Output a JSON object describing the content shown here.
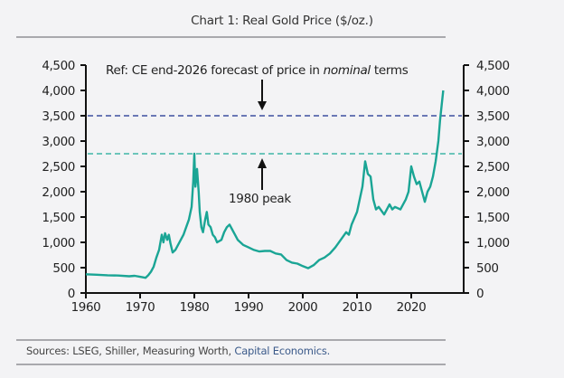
{
  "header": {
    "title": "Chart 1: Real Gold Price ($/oz.)"
  },
  "footer": {
    "sources_prefix": "Sources: LSEG, Shiller, Measuring Worth, ",
    "sources_link": "Capital Economics."
  },
  "colors": {
    "series": "#1aa595",
    "forecast_line": "#3c4fa0",
    "peak_line": "#3fb6a6",
    "axis": "#111111"
  },
  "chart_data": {
    "type": "line",
    "title": "Chart 1: Real Gold Price ($/oz.)",
    "xlabel": "",
    "ylabel": "",
    "xlim": [
      1960,
      2026
    ],
    "ylim": [
      0,
      4500
    ],
    "x_ticks": [
      1960,
      1970,
      1980,
      1990,
      2000,
      2010,
      2020
    ],
    "y_ticks": [
      0,
      500,
      1000,
      1500,
      2000,
      2500,
      3000,
      3500,
      4000,
      4500
    ],
    "y_tick_labels": [
      "0",
      "500",
      "1,000",
      "1,500",
      "2,000",
      "2,500",
      "3,000",
      "3,500",
      "4,000",
      "4,500"
    ],
    "dual_y_axis": true,
    "grid": false,
    "legend": "none",
    "series": [
      {
        "name": "Real gold price",
        "x": [
          1960,
          1962,
          1964,
          1966,
          1968,
          1969,
          1970,
          1971,
          1971.5,
          1972,
          1972.5,
          1973,
          1973.5,
          1974,
          1974.3,
          1974.6,
          1975,
          1975.3,
          1975.6,
          1976,
          1976.5,
          1977,
          1977.5,
          1978,
          1978.5,
          1979,
          1979.5,
          1979.8,
          1980,
          1980.2,
          1980.5,
          1980.8,
          1981,
          1981.3,
          1981.6,
          1982,
          1982.3,
          1982.6,
          1983,
          1983.4,
          1983.8,
          1984.2,
          1985,
          1985.5,
          1986,
          1986.5,
          1987,
          1987.5,
          1988,
          1989,
          1990,
          1991,
          1992,
          1993,
          1994,
          1995,
          1996,
          1997,
          1998,
          1999,
          2000,
          2001,
          2002,
          2003,
          2004,
          2005,
          2006,
          2007,
          2008,
          2008.5,
          2009,
          2010,
          2011,
          2011.5,
          2012,
          2012.5,
          2013,
          2013.5,
          2014,
          2015,
          2016,
          2016.5,
          2017,
          2018,
          2019,
          2019.5,
          2020,
          2020.5,
          2021,
          2021.5,
          2022,
          2022.5,
          2023,
          2023.5,
          2024,
          2024.5,
          2025,
          2025.3,
          2025.6,
          2025.9
        ],
        "values": [
          370,
          360,
          350,
          345,
          330,
          340,
          320,
          300,
          350,
          420,
          520,
          700,
          850,
          1150,
          1000,
          1180,
          1050,
          1150,
          980,
          800,
          850,
          950,
          1050,
          1150,
          1300,
          1450,
          1700,
          2200,
          2750,
          2100,
          2450,
          2000,
          1600,
          1300,
          1200,
          1450,
          1600,
          1350,
          1300,
          1150,
          1100,
          1000,
          1050,
          1200,
          1300,
          1350,
          1250,
          1150,
          1050,
          950,
          900,
          850,
          820,
          830,
          830,
          780,
          760,
          650,
          600,
          580,
          530,
          490,
          550,
          650,
          700,
          780,
          900,
          1050,
          1200,
          1150,
          1350,
          1600,
          2100,
          2600,
          2350,
          2300,
          1850,
          1650,
          1700,
          1550,
          1750,
          1650,
          1700,
          1650,
          1850,
          2000,
          2500,
          2300,
          2150,
          2200,
          2000,
          1800,
          2000,
          2100,
          2300,
          2600,
          3000,
          3400,
          3700,
          4000
        ]
      }
    ],
    "reference_lines": [
      {
        "name": "CE end-2026 forecast (nominal)",
        "y": 3500,
        "style": "dashed"
      },
      {
        "name": "1980 peak",
        "y": 2750,
        "style": "dashed"
      }
    ],
    "annotations": [
      {
        "text_prefix": "Ref: CE end-2026 forecast of price in ",
        "text_italic": "nominal",
        "text_suffix": " terms",
        "arrow": "down"
      },
      {
        "text": "1980 peak",
        "arrow": "up"
      }
    ]
  }
}
